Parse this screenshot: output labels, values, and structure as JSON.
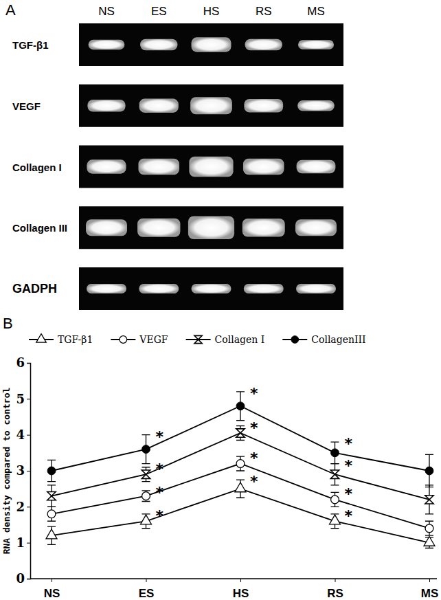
{
  "chart_data": [
    {
      "type": "gel",
      "title": "A",
      "categories": [
        "NS",
        "ES",
        "HS",
        "RS",
        "MS"
      ],
      "rows": [
        "TGF-β1",
        "VEGF",
        "Collagen I",
        "Collagen III",
        "GADPH"
      ]
    },
    {
      "type": "line",
      "title": "B",
      "categories": [
        "NS",
        "ES",
        "HS",
        "RS",
        "MS"
      ],
      "ylabel": "RNA density compared to control",
      "ylim": [
        0,
        6
      ],
      "yticks": [
        0,
        1,
        2,
        3,
        4,
        5,
        6
      ],
      "legend": "top",
      "series": [
        {
          "name": "TGF-β1",
          "color": "#000000",
          "marker": "triangle-open",
          "values": [
            1.2,
            1.6,
            2.5,
            1.6,
            1.0
          ],
          "errors": [
            0.25,
            0.2,
            0.25,
            0.2,
            0.15
          ],
          "annotations": [
            null,
            "*",
            "*",
            "*",
            null
          ]
        },
        {
          "name": "VEGF",
          "color": "#000000",
          "marker": "circle-open",
          "values": [
            1.8,
            2.3,
            3.2,
            2.2,
            1.4
          ],
          "errors": [
            0.2,
            0.15,
            0.2,
            0.2,
            0.2
          ],
          "annotations": [
            null,
            "*",
            "*",
            "*",
            null
          ]
        },
        {
          "name": "Collagen I",
          "color": "#000000",
          "marker": "x",
          "values": [
            2.3,
            2.9,
            4.05,
            2.9,
            2.2
          ],
          "errors": [
            0.3,
            0.2,
            0.2,
            0.3,
            0.4
          ],
          "annotations": [
            null,
            "*",
            "*",
            "*",
            null
          ]
        },
        {
          "name": "CollagenIII",
          "color": "#000000",
          "marker": "circle",
          "values": [
            3.0,
            3.6,
            4.8,
            3.5,
            3.0
          ],
          "errors": [
            0.3,
            0.4,
            0.4,
            0.3,
            0.45
          ],
          "annotations": [
            null,
            "*",
            "*",
            "*",
            null
          ]
        }
      ]
    }
  ]
}
